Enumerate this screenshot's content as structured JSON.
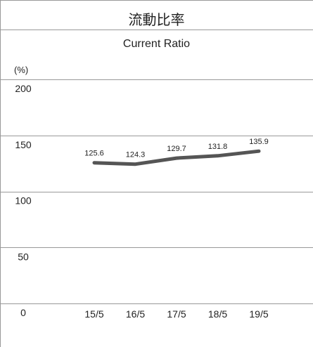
{
  "chart_data": {
    "type": "line",
    "title": "流動比率",
    "subtitle": "Current Ratio",
    "ylabel": "(%)",
    "xlabel": "",
    "categories": [
      "15/5",
      "16/5",
      "17/5",
      "18/5",
      "19/5"
    ],
    "series": [
      {
        "values": [
          125.6,
          124.3,
          129.7,
          131.8,
          135.9
        ]
      }
    ],
    "value_labels": [
      "125.6",
      "124.3",
      "129.7",
      "131.8",
      "135.9"
    ],
    "yticks": [
      "200",
      "150",
      "100",
      "50",
      "0"
    ],
    "ytick_values": [
      200,
      150,
      100,
      50,
      0
    ],
    "ylim": [
      0,
      200
    ],
    "grid": true,
    "legend": "none",
    "colors": {
      "line": "#555555",
      "grid": "#999999",
      "border": "#999999"
    }
  }
}
